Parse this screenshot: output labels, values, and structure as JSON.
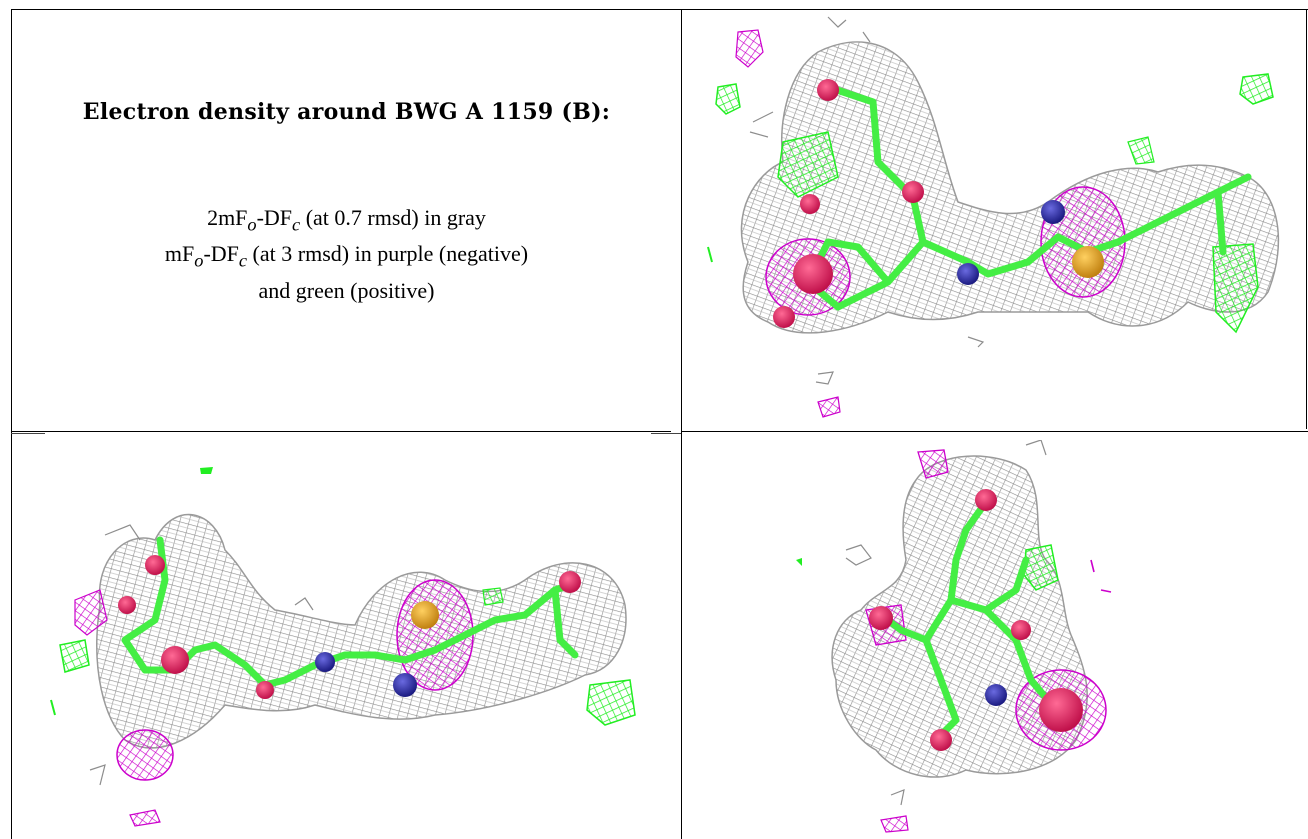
{
  "caption": {
    "title": "Electron density around BWG A 1159 (B):",
    "line1_prefix": "2mF",
    "line1_sub_o": "o",
    "line1_mid": "-DF",
    "line1_sub_c": "c",
    "line1_suffix": " (at 0.7 rmsd) in gray",
    "line2_prefix": "mF",
    "line2_sub_o": "o",
    "line2_mid": "-DF",
    "line2_sub_c": "c",
    "line2_suffix": " (at 3 rmsd) in purple (negative)",
    "line3": "and green (positive)"
  },
  "colors": {
    "mesh_gray": "#9a9a9a",
    "negative_purple": "#cc00cc",
    "positive_green": "#22ee22",
    "oxygen": "#e0205a",
    "nitrogen": "#2a2aa0",
    "sulfur": "#d8a020",
    "bond_green": "#44ee44"
  },
  "panels": [
    {
      "id": "view-1",
      "content": "electron-density-mesh"
    },
    {
      "id": "view-2",
      "content": "electron-density-mesh"
    },
    {
      "id": "view-3",
      "content": "electron-density-mesh"
    }
  ]
}
